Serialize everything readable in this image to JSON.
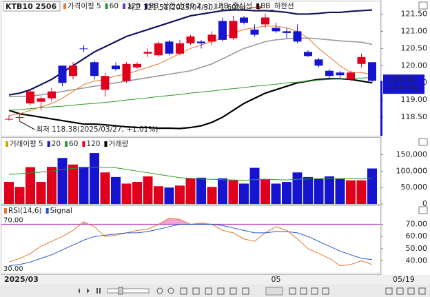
{
  "chart_data": [
    {
      "type": "candlestick",
      "title": "KTB10 2506",
      "legend": [
        {
          "label": "가격이평 5",
          "color": "#e8762b"
        },
        {
          "label": "60",
          "color": "#2a9a2a"
        },
        {
          "label": "120",
          "color": "#7b2fbf"
        },
        {
          "label": "BB_상한선(20,2,c)",
          "color": "#101060"
        },
        {
          "label": "BB_중심선",
          "color": "#999999"
        },
        {
          "label": "BB_하한선",
          "color": "#000000"
        }
      ],
      "up_color": "#e0001b",
      "down_color": "#1515d0",
      "open": [
        118.45,
        118.48,
        118.9,
        118.95,
        119.05,
        120.0,
        119.7,
        120.5,
        120.1,
        119.3,
        120.0,
        119.55,
        119.95,
        120.35,
        120.3,
        120.7,
        120.35,
        120.65,
        120.7,
        120.7,
        121.3,
        120.8,
        121.4,
        121.05,
        121.2,
        121.1,
        121.0,
        121.0,
        120.4,
        120.18,
        119.85,
        119.8,
        119.6,
        120.05,
        120.1
      ],
      "high": [
        118.55,
        118.58,
        119.3,
        119.1,
        119.35,
        120.0,
        120.1,
        120.6,
        120.15,
        119.8,
        120.1,
        120.1,
        120.1,
        120.5,
        120.7,
        120.75,
        120.75,
        120.9,
        120.75,
        121.0,
        121.4,
        121.45,
        121.45,
        121.2,
        121.51,
        121.25,
        121.1,
        121.2,
        120.45,
        120.22,
        119.9,
        119.85,
        119.85,
        120.35,
        120.1
      ],
      "low": [
        118.4,
        118.38,
        118.85,
        118.7,
        118.95,
        119.4,
        119.6,
        120.4,
        119.6,
        119.1,
        119.85,
        119.5,
        119.9,
        120.25,
        120.25,
        120.3,
        120.3,
        120.6,
        120.5,
        120.6,
        120.7,
        120.75,
        121.2,
        120.85,
        121.1,
        120.95,
        120.8,
        120.65,
        120.25,
        119.95,
        119.6,
        119.65,
        119.55,
        119.95,
        119.5
      ],
      "close": [
        118.45,
        118.5,
        119.25,
        119.05,
        119.25,
        119.5,
        120.0,
        120.48,
        119.7,
        119.7,
        119.9,
        120.05,
        120.05,
        120.4,
        120.65,
        120.35,
        120.65,
        120.85,
        120.65,
        120.9,
        120.75,
        121.3,
        121.25,
        120.9,
        121.4,
        121.0,
        120.95,
        120.7,
        120.28,
        120.0,
        119.7,
        119.72,
        119.8,
        120.25,
        119.56
      ],
      "lines": [
        {
          "color": "#101060",
          "width": 2.2,
          "values": [
            119.15,
            119.2,
            119.3,
            119.45,
            119.6,
            119.8,
            120.0,
            120.2,
            120.4,
            120.55,
            120.7,
            120.85,
            120.95,
            121.05,
            121.15,
            121.25,
            121.35,
            121.45,
            121.5,
            121.55,
            121.6,
            121.62,
            121.62,
            121.6,
            121.6,
            121.58,
            121.55,
            121.5,
            121.5,
            121.52,
            121.55,
            121.55,
            121.58,
            121.6,
            121.62
          ]
        },
        {
          "color": "#999999",
          "width": 1.6,
          "values": [
            119.1,
            119.1,
            119.12,
            119.15,
            119.2,
            119.25,
            119.3,
            119.35,
            119.4,
            119.45,
            119.5,
            119.55,
            119.6,
            119.65,
            119.7,
            119.75,
            119.8,
            119.85,
            119.95,
            120.05,
            120.2,
            120.35,
            120.5,
            120.6,
            120.7,
            120.75,
            120.78,
            120.8,
            120.8,
            120.78,
            120.75,
            120.72,
            120.7,
            120.68,
            120.62
          ]
        },
        {
          "color": "#000000",
          "width": 2.2,
          "values": [
            118.7,
            118.6,
            118.55,
            118.5,
            118.45,
            118.4,
            118.35,
            118.3,
            118.3,
            118.28,
            118.25,
            118.22,
            118.2,
            118.2,
            118.18,
            118.18,
            118.17,
            118.2,
            118.25,
            118.35,
            118.5,
            118.7,
            118.9,
            119.05,
            119.2,
            119.3,
            119.4,
            119.5,
            119.55,
            119.6,
            119.62,
            119.62,
            119.6,
            119.55,
            119.5
          ]
        },
        {
          "color": "#2a9a2a",
          "width": 1,
          "values": [
            118.7,
            118.72,
            118.75,
            118.78,
            118.8,
            118.82,
            118.85,
            118.88,
            118.9,
            118.93,
            118.96,
            119.0,
            119.03,
            119.06,
            119.1,
            119.13,
            119.16,
            119.2,
            119.23,
            119.26,
            119.3,
            119.33,
            119.36,
            119.4,
            119.43,
            119.46,
            119.5,
            119.52,
            119.55,
            119.58,
            119.6,
            119.62,
            119.63,
            119.64,
            119.65
          ]
        },
        {
          "color": "#e8762b",
          "width": 1,
          "values": [
            118.55,
            118.6,
            118.7,
            118.8,
            118.9,
            119.05,
            119.25,
            119.45,
            119.55,
            119.6,
            119.7,
            119.75,
            119.85,
            119.95,
            120.05,
            120.2,
            120.35,
            120.5,
            120.6,
            120.7,
            120.8,
            120.95,
            121.05,
            121.1,
            121.15,
            121.15,
            121.1,
            121.0,
            120.8,
            120.5,
            120.25,
            120.0,
            119.8,
            119.8,
            119.75
          ]
        }
      ],
      "high_note": "최고 121.51(2025/04/30, -1.60%)",
      "low_note": "최저 118.38(2025/03/27, +1.01%)",
      "last_price": 119.56,
      "last_change": "(-0.63%)",
      "ylim": [
        117.96,
        121.89
      ],
      "yticks": [
        {
          "value": 121.5,
          "label": "121.50"
        },
        {
          "value": 121,
          "label": "121.00"
        },
        {
          "value": 120.5,
          "label": "120.50"
        },
        {
          "value": 120,
          "label": "120.00"
        },
        {
          "value": 119.5,
          "label": "119.50"
        },
        {
          "value": 119,
          "label": "119.00"
        },
        {
          "value": 118.5,
          "label": "118.50"
        }
      ]
    },
    {
      "type": "bar",
      "legend": [
        {
          "label": "거래이평 5",
          "color": "#d9a000"
        },
        {
          "label": "20",
          "color": "#1515d0"
        },
        {
          "label": "60",
          "color": "#2a9a2a"
        },
        {
          "label": "120",
          "color": "#e0001b"
        },
        {
          "label": "거래량",
          "color": "#000000"
        }
      ],
      "values": [
        67000,
        52000,
        112000,
        67000,
        113000,
        140000,
        120000,
        113000,
        155000,
        96000,
        82000,
        62000,
        67000,
        84000,
        54000,
        50000,
        56000,
        78000,
        80000,
        52000,
        78000,
        72000,
        62000,
        110000,
        76000,
        62000,
        67000,
        96000,
        82000,
        76000,
        84000,
        76000,
        72000,
        72000,
        108000
      ],
      "lines": [
        {
          "color": "#2a9a2a",
          "values": [
            90000,
            92000,
            95000,
            97000,
            100000,
            105000,
            108000,
            110000,
            112000,
            112000,
            110000,
            105000,
            100000,
            95000,
            90000,
            85000,
            80000,
            78000,
            76000,
            75000,
            74000,
            73000,
            72000,
            74000,
            75000,
            74000,
            73000,
            75000,
            76000,
            77000,
            78000,
            78000,
            77000,
            76000,
            78000
          ]
        }
      ],
      "ylim": [
        0,
        195000
      ],
      "yticks": [
        {
          "value": 150000,
          "label": "150,000"
        },
        {
          "value": 100000,
          "label": "100,000"
        },
        {
          "value": 50000,
          "label": "50,000"
        },
        0
      ]
    },
    {
      "type": "line",
      "series": [
        {
          "name": "RSI(14,6)",
          "color": "#e8762b",
          "values": [
            39,
            42,
            46,
            52,
            56,
            60,
            65,
            72,
            68,
            60,
            61,
            63,
            65,
            66,
            70,
            75,
            74,
            70,
            71,
            70,
            65,
            63,
            58,
            56,
            63,
            68,
            65,
            58,
            50,
            46,
            42,
            36,
            37,
            40,
            37
          ]
        },
        {
          "name": "Signal",
          "color": "#2a55c8",
          "values": [
            36,
            37,
            39,
            42,
            45,
            49,
            53,
            57,
            60,
            61,
            62,
            63,
            63,
            64,
            66,
            68,
            70,
            70,
            70,
            70,
            69,
            67,
            65,
            63,
            63,
            64,
            64,
            63,
            60,
            56,
            52,
            48,
            45,
            42,
            41
          ]
        }
      ],
      "reference_lines": [
        {
          "value": 70,
          "label": "70.00",
          "color": "#c040c0"
        },
        {
          "value": 30,
          "label": "30.00",
          "color": "#bbbbbb"
        }
      ],
      "overbought_fill": "#f2a6d6",
      "ylim": [
        29,
        85
      ],
      "yticks": [
        {
          "value": 70,
          "label": "70.00"
        },
        {
          "value": 60,
          "label": "60.00"
        },
        {
          "value": 50,
          "label": "50.00"
        },
        {
          "value": 40,
          "label": "40.00"
        }
      ],
      "xticks": [
        {
          "value": 25,
          "label": "05"
        }
      ],
      "start_label": "2025/03",
      "end_label": "05/19"
    }
  ]
}
